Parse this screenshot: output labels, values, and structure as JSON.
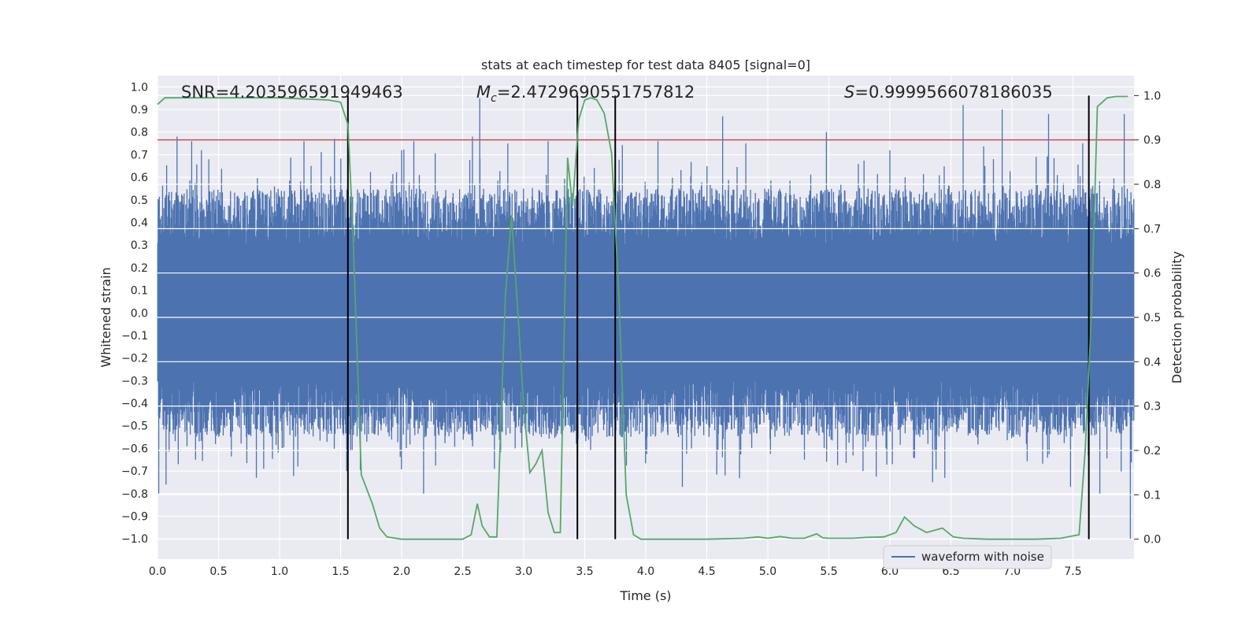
{
  "chart_data": {
    "type": "line",
    "title": "stats at each timestep for test data 8405 [signal=0]",
    "xlabel": "Time (s)",
    "ylabel_left": "Whitened strain",
    "ylabel_right": "Detection probability",
    "xlim": [
      0.0,
      8.0
    ],
    "ylim_left": [
      -1.09,
      1.05
    ],
    "ylim_right": [
      -0.045,
      1.045
    ],
    "x_ticks": [
      0.0,
      0.5,
      1.0,
      1.5,
      2.0,
      2.5,
      3.0,
      3.5,
      4.0,
      4.5,
      5.0,
      5.5,
      6.0,
      6.5,
      7.0,
      7.5
    ],
    "x_tick_labels": [
      "0.0",
      "0.5",
      "1.0",
      "1.5",
      "2.0",
      "2.5",
      "3.0",
      "3.5",
      "4.0",
      "4.5",
      "5.0",
      "5.5",
      "6.0",
      "6.5",
      "7.0",
      "7.5"
    ],
    "y_left_ticks": [
      1.0,
      0.9,
      0.8,
      0.7,
      0.6,
      0.5,
      0.4,
      0.3,
      0.2,
      0.1,
      0.0,
      -0.1,
      -0.2,
      -0.3,
      -0.4,
      -0.5,
      -0.6,
      -0.7,
      -0.8,
      -0.9,
      -1.0
    ],
    "y_left_tick_labels": [
      "1.0",
      "0.9",
      "0.8",
      "0.7",
      "0.6",
      "0.5",
      "0.4",
      "0.3",
      "0.2",
      "0.1",
      "0.0",
      "−0.1",
      "−0.2",
      "−0.3",
      "−0.4",
      "−0.5",
      "−0.6",
      "−0.7",
      "−0.8",
      "−0.9",
      "−1.0"
    ],
    "y_right_ticks": [
      1.0,
      0.9,
      0.8,
      0.7,
      0.6,
      0.5,
      0.4,
      0.3,
      0.2,
      0.1,
      0.0
    ],
    "y_right_tick_labels": [
      "1.0",
      "0.9",
      "0.8",
      "0.7",
      "0.6",
      "0.5",
      "0.4",
      "0.3",
      "0.2",
      "0.1",
      "0.0"
    ],
    "annotations": {
      "snr": "SNR=4.203596591949463",
      "mc_symbol": "M",
      "mc_subscript": "c",
      "mc_value": "=2.4729690551757812",
      "s_symbol": "S",
      "s_value": "=0.9999566078186035"
    },
    "threshold": {
      "value_right_axis": 0.9,
      "color": "#c44e52"
    },
    "vertical_markers_x": [
      1.56,
      3.44,
      3.75,
      7.63
    ],
    "waveform": {
      "name": "waveform with noise",
      "color": "#4c72b0",
      "envelope_typical": 0.5,
      "spikes": [
        {
          "x": 0.01,
          "y": -0.8
        },
        {
          "x": 0.07,
          "y": -0.76
        },
        {
          "x": 0.16,
          "y": 0.78
        },
        {
          "x": 0.17,
          "y": -0.67
        },
        {
          "x": 0.28,
          "y": 0.76
        },
        {
          "x": 0.36,
          "y": 0.72
        },
        {
          "x": 0.42,
          "y": 0.68
        },
        {
          "x": 0.81,
          "y": -0.73
        },
        {
          "x": 0.87,
          "y": -0.69
        },
        {
          "x": 1.2,
          "y": 0.76
        },
        {
          "x": 1.15,
          "y": -0.68
        },
        {
          "x": 1.45,
          "y": 0.77
        },
        {
          "x": 1.55,
          "y": -0.7
        },
        {
          "x": 2.0,
          "y": 0.72
        },
        {
          "x": 2.1,
          "y": 0.76
        },
        {
          "x": 2.18,
          "y": -0.8
        },
        {
          "x": 2.58,
          "y": 0.78
        },
        {
          "x": 2.64,
          "y": 0.95
        },
        {
          "x": 2.76,
          "y": -0.69
        },
        {
          "x": 2.87,
          "y": 0.75
        },
        {
          "x": 2.93,
          "y": -0.6
        },
        {
          "x": 3.2,
          "y": 0.76
        },
        {
          "x": 3.75,
          "y": -0.65
        },
        {
          "x": 4.1,
          "y": 0.76
        },
        {
          "x": 4.3,
          "y": -0.77
        },
        {
          "x": 4.63,
          "y": 0.87
        },
        {
          "x": 4.65,
          "y": -0.72
        },
        {
          "x": 4.82,
          "y": 0.75
        },
        {
          "x": 5.3,
          "y": -0.65
        },
        {
          "x": 5.48,
          "y": 0.8
        },
        {
          "x": 5.78,
          "y": -0.7
        },
        {
          "x": 6.0,
          "y": 0.72
        },
        {
          "x": 6.02,
          "y": -0.67
        },
        {
          "x": 6.35,
          "y": -0.75
        },
        {
          "x": 6.45,
          "y": -0.73
        },
        {
          "x": 6.6,
          "y": 0.92
        },
        {
          "x": 6.92,
          "y": 0.9
        },
        {
          "x": 7.3,
          "y": 0.88
        },
        {
          "x": 7.48,
          "y": -0.77
        },
        {
          "x": 7.58,
          "y": 0.75
        },
        {
          "x": 7.72,
          "y": -0.8
        },
        {
          "x": 7.92,
          "y": 0.88
        },
        {
          "x": 7.97,
          "y": -1.0
        }
      ]
    },
    "series": [
      {
        "name": "Detection probability",
        "axis": "right",
        "color": "#55a868",
        "x": [
          0.0,
          0.06,
          0.3,
          1.0,
          1.4,
          1.5,
          1.56,
          1.6,
          1.67,
          1.76,
          1.82,
          1.88,
          2.0,
          2.3,
          2.5,
          2.57,
          2.62,
          2.66,
          2.72,
          2.78,
          2.85,
          2.9,
          2.95,
          3.0,
          3.05,
          3.1,
          3.15,
          3.2,
          3.25,
          3.3,
          3.36,
          3.4,
          3.45,
          3.5,
          3.55,
          3.6,
          3.66,
          3.72,
          3.78,
          3.84,
          3.9,
          3.96,
          4.02,
          4.5,
          4.8,
          4.92,
          5.0,
          5.1,
          5.2,
          5.3,
          5.4,
          5.45,
          5.5,
          5.6,
          5.7,
          5.8,
          5.95,
          6.05,
          6.12,
          6.2,
          6.3,
          6.43,
          6.52,
          6.6,
          6.8,
          7.0,
          7.2,
          7.4,
          7.55,
          7.6,
          7.65,
          7.7,
          7.78,
          7.85,
          7.95
        ],
        "y": [
          0.98,
          0.995,
          0.995,
          0.995,
          0.99,
          0.985,
          0.935,
          0.7,
          0.145,
          0.08,
          0.025,
          0.005,
          0.0,
          0.0,
          0.0,
          0.01,
          0.08,
          0.03,
          0.005,
          0.005,
          0.55,
          0.73,
          0.52,
          0.3,
          0.15,
          0.17,
          0.2,
          0.06,
          0.015,
          0.015,
          0.86,
          0.75,
          0.945,
          0.99,
          0.995,
          0.99,
          0.96,
          0.87,
          0.55,
          0.1,
          0.01,
          0.0,
          0.0,
          0.0,
          0.002,
          0.005,
          0.002,
          0.006,
          0.002,
          0.002,
          0.012,
          0.003,
          0.002,
          0.002,
          0.002,
          0.004,
          0.005,
          0.015,
          0.05,
          0.03,
          0.015,
          0.025,
          0.005,
          0.002,
          0.0,
          0.0,
          0.0,
          0.002,
          0.01,
          0.2,
          0.5,
          0.975,
          0.995,
          0.998,
          0.998
        ]
      }
    ],
    "legend": {
      "label": "waveform with noise",
      "placement": "lower-right"
    }
  }
}
